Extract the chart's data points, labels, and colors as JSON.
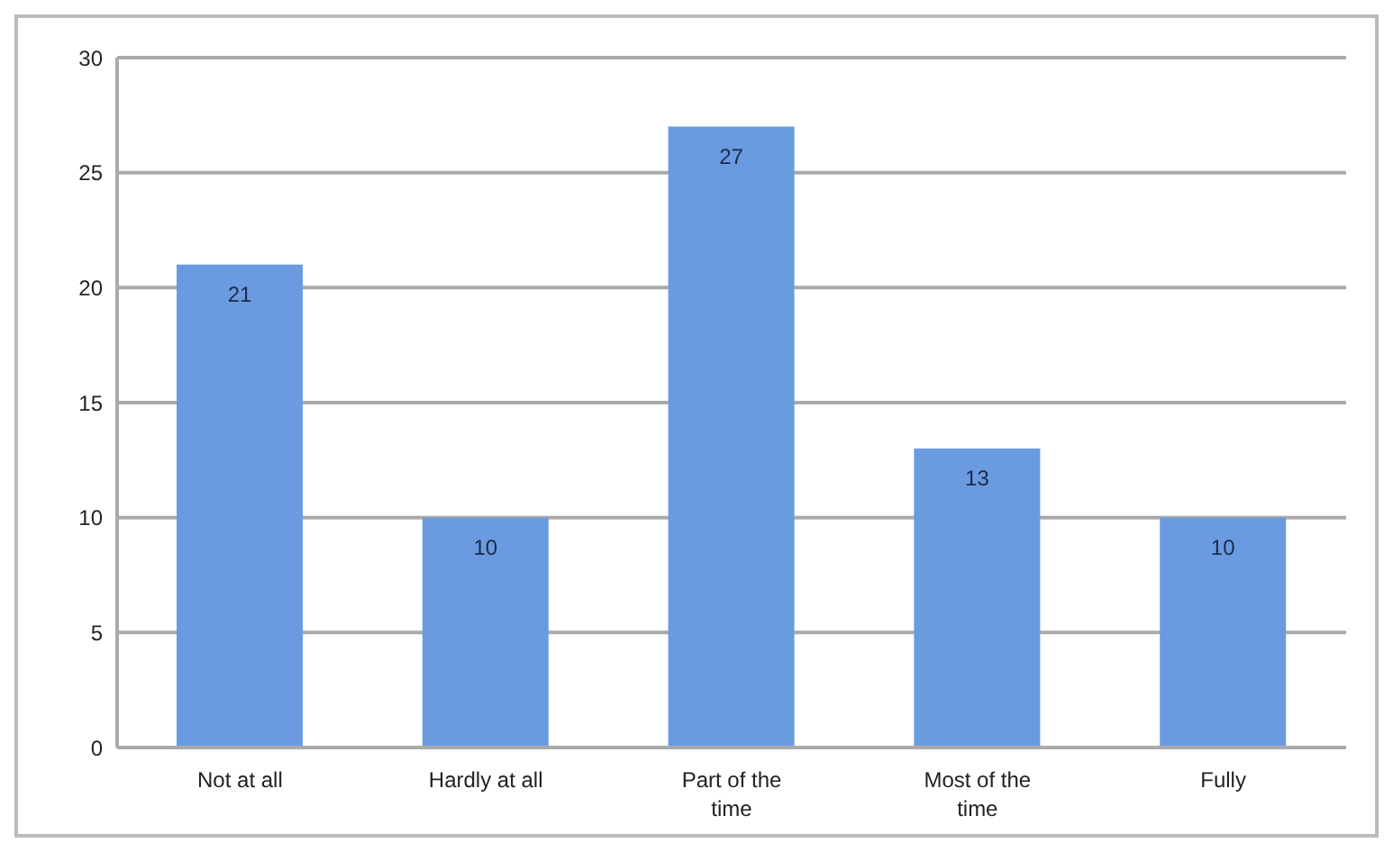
{
  "chart_data": {
    "type": "bar",
    "categories": [
      "Not at all",
      "Hardly at all",
      "Part of the time",
      "Most of the time",
      "Fully"
    ],
    "values": [
      21,
      10,
      27,
      13,
      10
    ],
    "color": "#6a9be0",
    "ylim": [
      0,
      30
    ],
    "yticks": [
      0,
      5,
      10,
      15,
      20,
      25,
      30
    ],
    "grid": "y",
    "data_labels": true
  }
}
